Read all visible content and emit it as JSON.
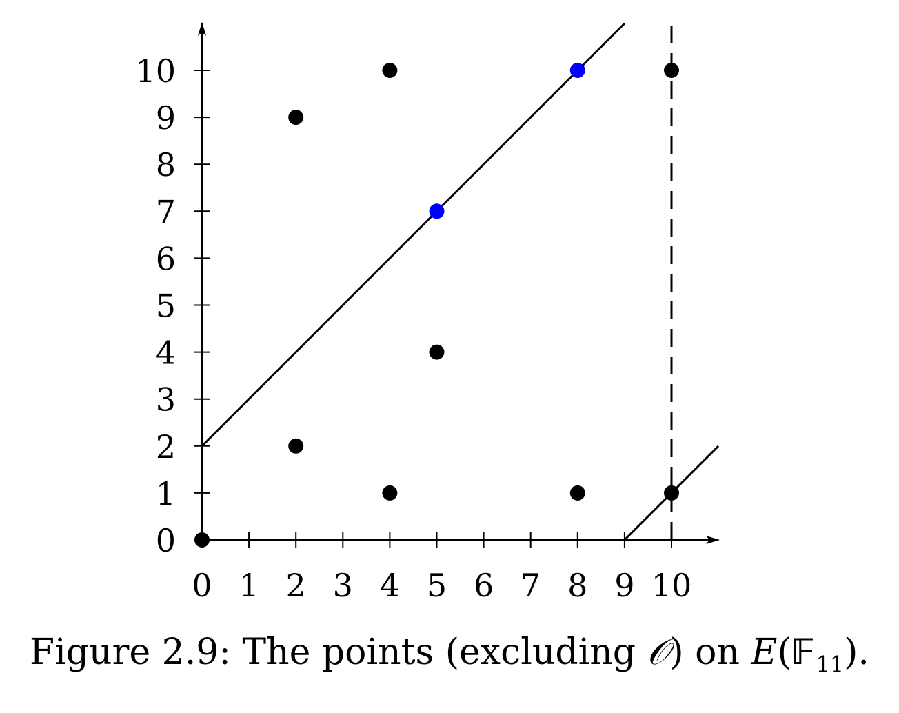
{
  "caption": {
    "prefix": "Figure 2.9: The points (excluding ",
    "symbol_O": "𝒪",
    "middle": ") on ",
    "symbol_E": "E",
    "paren_open": "(",
    "field": "𝔽",
    "field_sub": "11",
    "suffix": ")."
  },
  "chart_data": {
    "type": "scatter",
    "title": "",
    "xlabel": "",
    "ylabel": "",
    "xlim": [
      0,
      11
    ],
    "ylim": [
      0,
      11
    ],
    "x_ticks": [
      0,
      1,
      2,
      3,
      4,
      5,
      6,
      7,
      8,
      9,
      10
    ],
    "y_ticks": [
      0,
      1,
      2,
      3,
      4,
      5,
      6,
      7,
      8,
      9,
      10
    ],
    "grid": false,
    "legend": "none",
    "series": [
      {
        "color": "#000000",
        "points": [
          [
            0,
            0
          ],
          [
            2,
            2
          ],
          [
            2,
            9
          ],
          [
            4,
            1
          ],
          [
            4,
            10
          ],
          [
            5,
            4
          ],
          [
            8,
            1
          ],
          [
            10,
            1
          ],
          [
            10,
            10
          ]
        ]
      },
      {
        "color": "#0000ff",
        "points": [
          [
            5,
            7
          ],
          [
            8,
            10
          ]
        ]
      }
    ],
    "lines": [
      {
        "style": "solid",
        "from": [
          0,
          2
        ],
        "to": [
          9,
          11
        ]
      },
      {
        "style": "solid",
        "from": [
          9,
          0
        ],
        "to": [
          11,
          2
        ]
      },
      {
        "style": "dashed",
        "from": [
          10,
          0
        ],
        "to": [
          10,
          11
        ]
      }
    ]
  }
}
